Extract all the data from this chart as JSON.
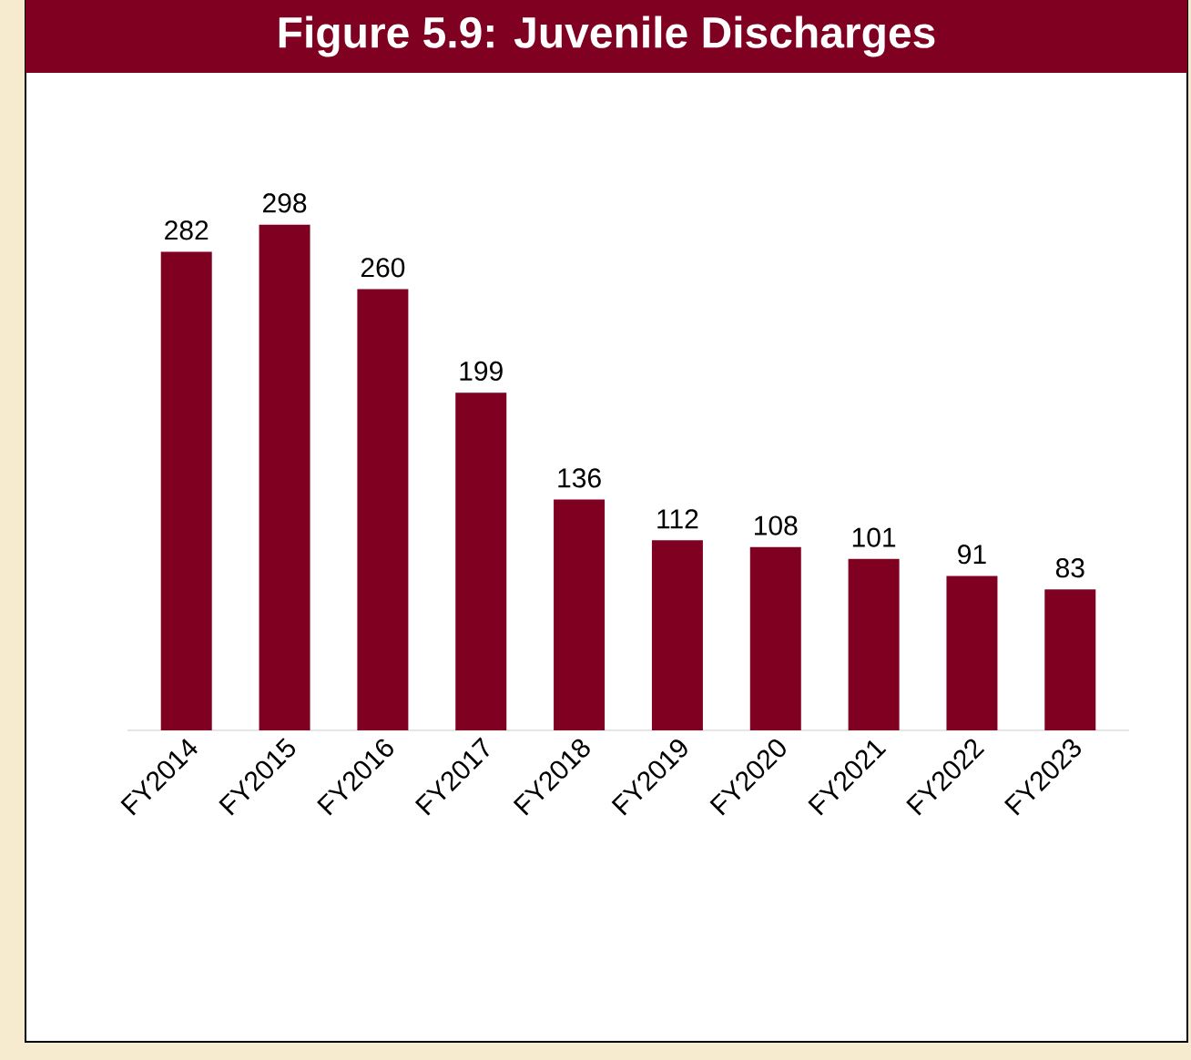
{
  "chart_data": {
    "type": "bar",
    "title": "Figure 5.9: Juvenile Discharges",
    "categories": [
      "FY2014",
      "FY2015",
      "FY2016",
      "FY2017",
      "FY2018",
      "FY2019",
      "FY2020",
      "FY2021",
      "FY2022",
      "FY2023"
    ],
    "values": [
      282,
      298,
      260,
      199,
      136,
      112,
      108,
      101,
      91,
      83
    ],
    "color": "#7f0020",
    "data_labels": true
  }
}
